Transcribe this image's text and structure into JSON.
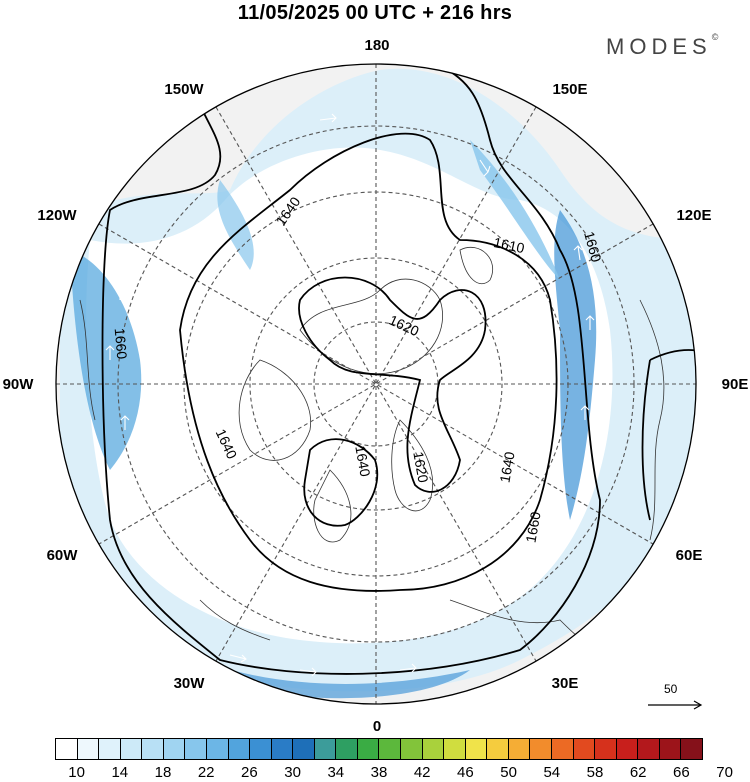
{
  "header": {
    "title": "11/05/2025  00 UTC  + 216 hrs",
    "logo": "MODES",
    "logo_mark": "©"
  },
  "map": {
    "longitude_labels": {
      "lon_180": "180",
      "lon_150e": "150E",
      "lon_120e": "120E",
      "lon_90e": "90E",
      "lon_60e": "60E",
      "lon_30e": "30E",
      "lon_0": "0",
      "lon_30w": "30W",
      "lon_60w": "60W",
      "lon_90w": "90W",
      "lon_120w": "120W",
      "lon_150w": "150W"
    },
    "contour_labels": [
      "1640",
      "1610",
      "1660",
      "1620",
      "1660",
      "1640",
      "1640",
      "1620",
      "1640",
      "1660"
    ],
    "reference_vector_label": "50"
  },
  "colorbar": {
    "labels": [
      "10",
      "14",
      "18",
      "22",
      "26",
      "30",
      "34",
      "38",
      "42",
      "46",
      "50",
      "54",
      "58",
      "62",
      "66",
      "70"
    ],
    "colors": [
      "#ffffff",
      "#eef8fd",
      "#dff2fb",
      "#cdeaf8",
      "#b8e0f5",
      "#a0d4f1",
      "#87c6ec",
      "#6cb6e6",
      "#52a4dd",
      "#3b90d3",
      "#2a7cc6",
      "#1e6fb8",
      "#3c9c9a",
      "#2e9f62",
      "#3aac44",
      "#5cb83c",
      "#82c43a",
      "#a9d13c",
      "#d0dd3f",
      "#f0e34a",
      "#f5cc3e",
      "#f5ad35",
      "#f28c2c",
      "#ec6a24",
      "#e24a1f",
      "#d6311c",
      "#c81f1c",
      "#b3181c",
      "#9c141a",
      "#85111a"
    ]
  }
}
